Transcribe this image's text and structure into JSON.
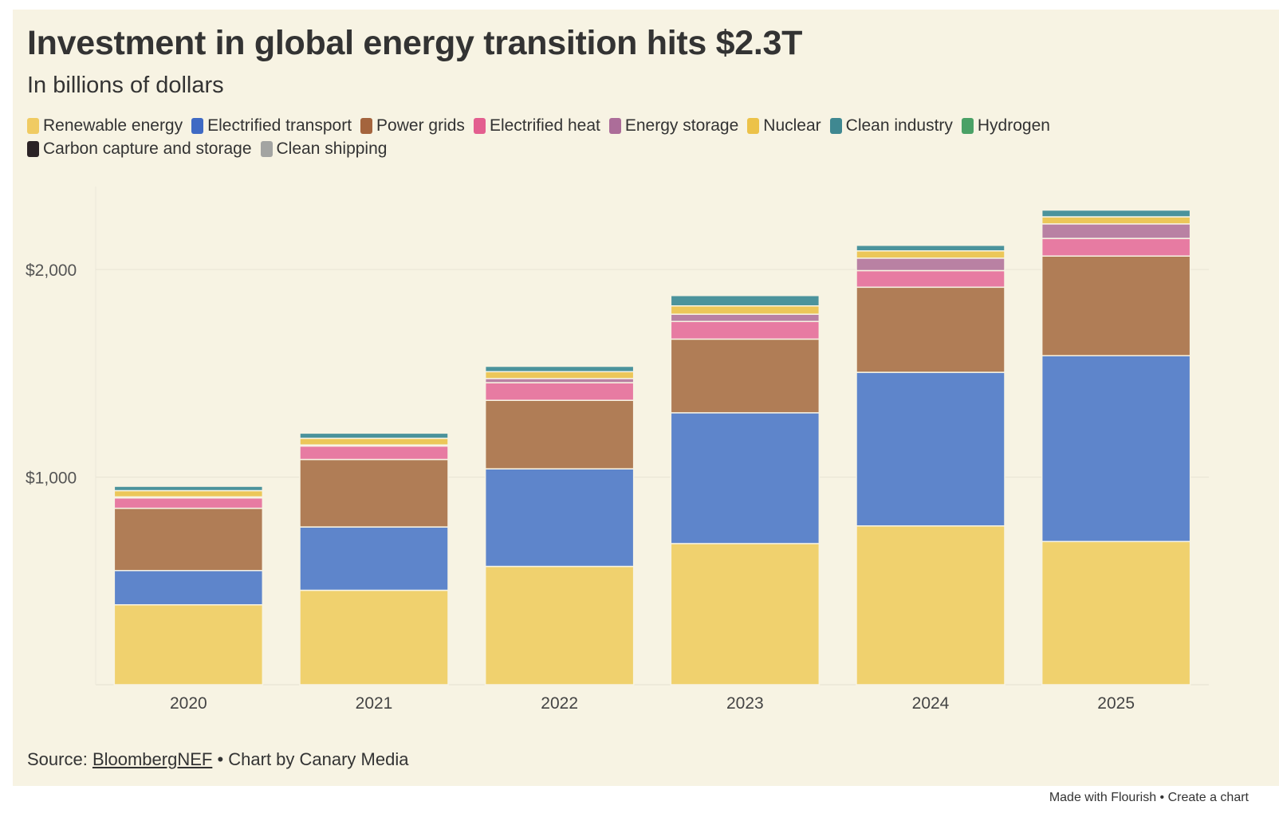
{
  "title": "Investment in global energy transition hits $2.3T",
  "subtitle": "In billions of dollars",
  "source": {
    "prefix": "Source: ",
    "link_text": "BloombergNEF",
    "suffix": " • Chart by Canary Media"
  },
  "footer": {
    "made_with": "Made with Flourish",
    "separator": " • ",
    "create": "Create a chart"
  },
  "chart_data": {
    "type": "bar",
    "stacked": true,
    "categories": [
      "2020",
      "2021",
      "2022",
      "2023",
      "2024",
      "2025"
    ],
    "ylim": [
      0,
      2400
    ],
    "y_ticks": [
      1000,
      2000
    ],
    "y_tick_labels": [
      "$1,000",
      "$2,000"
    ],
    "grid": true,
    "legend_position": "top",
    "series": [
      {
        "name": "Renewable energy",
        "color": "#f0d16e",
        "legend_color": "#f0cb62",
        "values": [
          385,
          455,
          570,
          680,
          765,
          690
        ]
      },
      {
        "name": "Electrified transport",
        "color": "#5e85cb",
        "legend_color": "#3f6ac4",
        "values": [
          165,
          305,
          470,
          630,
          740,
          895
        ]
      },
      {
        "name": "Power grids",
        "color": "#b07d56",
        "legend_color": "#a4643d",
        "values": [
          300,
          325,
          330,
          355,
          410,
          480
        ]
      },
      {
        "name": "Electrified heat",
        "color": "#e77ba2",
        "legend_color": "#e35e8f",
        "values": [
          50,
          65,
          85,
          85,
          80,
          85
        ]
      },
      {
        "name": "Energy storage",
        "color": "#b981a3",
        "legend_color": "#ac6d99",
        "values": [
          5,
          5,
          20,
          35,
          60,
          70
        ]
      },
      {
        "name": "Nuclear",
        "color": "#ecc759",
        "legend_color": "#ecc249",
        "values": [
          30,
          32,
          33,
          40,
          35,
          34
        ]
      },
      {
        "name": "Clean industry",
        "color": "#4b939c",
        "legend_color": "#3f8891",
        "values": [
          22,
          26,
          27,
          50,
          27,
          33
        ]
      },
      {
        "name": "Hydrogen",
        "color": "#56a56e",
        "legend_color": "#4aa166",
        "values": [
          1,
          1,
          1,
          5,
          4,
          3
        ]
      },
      {
        "name": "Carbon capture and storage",
        "color": "#2b2326",
        "legend_color": "#2b2326",
        "values": [
          1,
          1,
          1,
          4,
          4,
          3
        ]
      },
      {
        "name": "Clean shipping",
        "color": "#a8a9a7",
        "legend_color": "#a3a4a2",
        "values": [
          0,
          0,
          0,
          1,
          1,
          2
        ]
      }
    ]
  }
}
